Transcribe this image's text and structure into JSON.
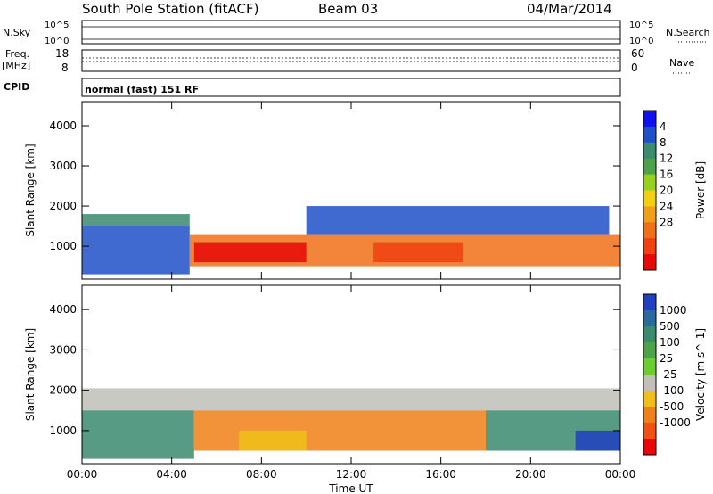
{
  "header": {
    "station": "South Pole Station (fitACF)",
    "beam": "Beam 03",
    "date": "04/Mar/2014"
  },
  "strips": {
    "nsky_label": "N.Sky",
    "nsky_ticks": [
      "10^5",
      "10^0"
    ],
    "nsearch_label": "N.Search",
    "nsearch_ticks": [
      "10^5",
      "10^0"
    ],
    "freq_label": "Freq.",
    "freq_unit": "[MHz]",
    "freq_ticks": [
      "18",
      "8"
    ],
    "nave_label": "Nave",
    "nave_ticks": [
      "60",
      "0"
    ],
    "cpid_label": "CPID",
    "cpid_text": "normal (fast) 151 RF"
  },
  "chart_data": [
    {
      "type": "heatmap",
      "name": "power",
      "xlabel": "Time UT",
      "ylabel": "Slant Range [km]",
      "xticks": [
        "00:00",
        "04:00",
        "08:00",
        "12:00",
        "16:00",
        "20:00",
        "00:00"
      ],
      "xlim_hours": [
        0,
        24
      ],
      "ylim": [
        180,
        4600
      ],
      "yticks": [
        1000,
        2000,
        3000,
        4000
      ],
      "colorbar": {
        "label": "Power [dB]",
        "ticks": [
          "4",
          "8",
          "12",
          "16",
          "20",
          "24",
          "28"
        ],
        "colors": [
          "#1010f0",
          "#2050c8",
          "#3a8a6e",
          "#4ea24a",
          "#98d020",
          "#f0d010",
          "#f0a018",
          "#f07018",
          "#f04010",
          "#e80808"
        ]
      },
      "bands": [
        {
          "t0": 0.0,
          "t1": 4.8,
          "rmin": 300,
          "rmax": 1500,
          "color": "#2050c8"
        },
        {
          "t0": 0.0,
          "t1": 4.8,
          "rmin": 1500,
          "rmax": 1800,
          "color": "#3a8a6e"
        },
        {
          "t0": 4.8,
          "t1": 24.0,
          "rmin": 500,
          "rmax": 1300,
          "color": "#f07018"
        },
        {
          "t0": 5.0,
          "t1": 10.0,
          "rmin": 600,
          "rmax": 1100,
          "color": "#e80808"
        },
        {
          "t0": 10.0,
          "t1": 23.5,
          "rmin": 1300,
          "rmax": 2000,
          "color": "#2050c8"
        },
        {
          "t0": 13.0,
          "t1": 17.0,
          "rmin": 600,
          "rmax": 1100,
          "color": "#f04010"
        }
      ]
    },
    {
      "type": "heatmap",
      "name": "velocity",
      "xlabel": "Time UT",
      "ylabel": "Slant Range [km]",
      "xticks": [
        "00:00",
        "04:00",
        "08:00",
        "12:00",
        "16:00",
        "20:00",
        "00:00"
      ],
      "xlim_hours": [
        0,
        24
      ],
      "ylim": [
        180,
        4600
      ],
      "yticks": [
        1000,
        2000,
        3000,
        4000
      ],
      "colorbar": {
        "label": "Velocity [m s^-1]",
        "ticks": [
          "1000",
          "500",
          "100",
          "25",
          "-25",
          "-100",
          "-500",
          "-1000"
        ],
        "colors": [
          "#2040c0",
          "#2a6aa0",
          "#3a8a6e",
          "#4ea24a",
          "#6ccc30",
          "#c0c0b8",
          "#f0c018",
          "#f08018",
          "#f05010",
          "#e80808"
        ]
      },
      "bands": [
        {
          "t0": 0.0,
          "t1": 24.0,
          "rmin": 1500,
          "rmax": 2050,
          "color": "#c0c0b8"
        },
        {
          "t0": 0.0,
          "t1": 5.0,
          "rmin": 300,
          "rmax": 1500,
          "color": "#3a8a6e"
        },
        {
          "t0": 5.0,
          "t1": 18.0,
          "rmin": 500,
          "rmax": 1500,
          "color": "#f08018"
        },
        {
          "t0": 7.0,
          "t1": 10.0,
          "rmin": 500,
          "rmax": 1000,
          "color": "#f0c018"
        },
        {
          "t0": 18.0,
          "t1": 24.0,
          "rmin": 500,
          "rmax": 1500,
          "color": "#3a8a6e"
        },
        {
          "t0": 22.0,
          "t1": 24.0,
          "rmin": 500,
          "rmax": 1000,
          "color": "#2040c0"
        }
      ]
    }
  ]
}
